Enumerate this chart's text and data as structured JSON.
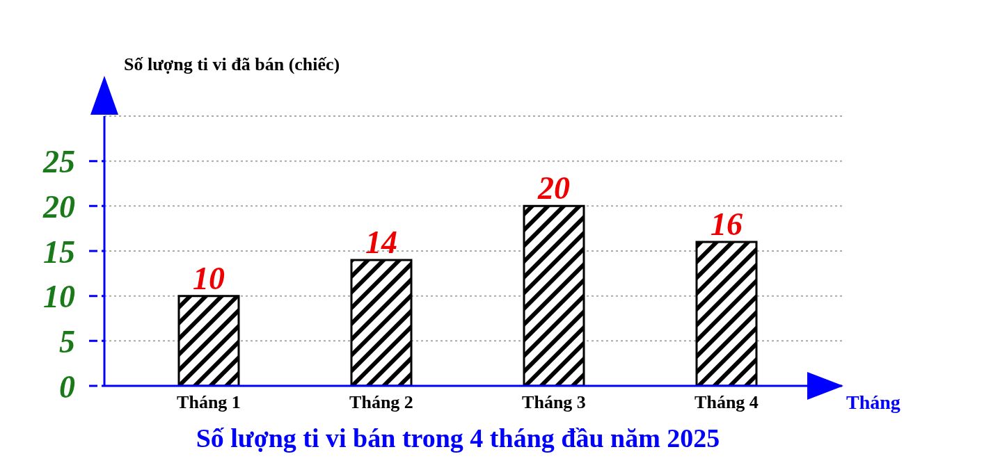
{
  "chart_data": {
    "type": "bar",
    "title": "Số lượng ti vi bán trong 4 tháng đầu năm 2025",
    "xlabel": "Tháng",
    "ylabel": "Số lượng ti vi đã bán (chiếc)",
    "categories": [
      "Tháng 1",
      "Tháng 2",
      "Tháng 3",
      "Tháng 4"
    ],
    "values": [
      10,
      14,
      20,
      16
    ],
    "color": "#000000",
    "ylim": [
      0,
      30
    ],
    "yticks": [
      0,
      5,
      10,
      15,
      20,
      25
    ],
    "grid": "y",
    "data_labels": true
  }
}
